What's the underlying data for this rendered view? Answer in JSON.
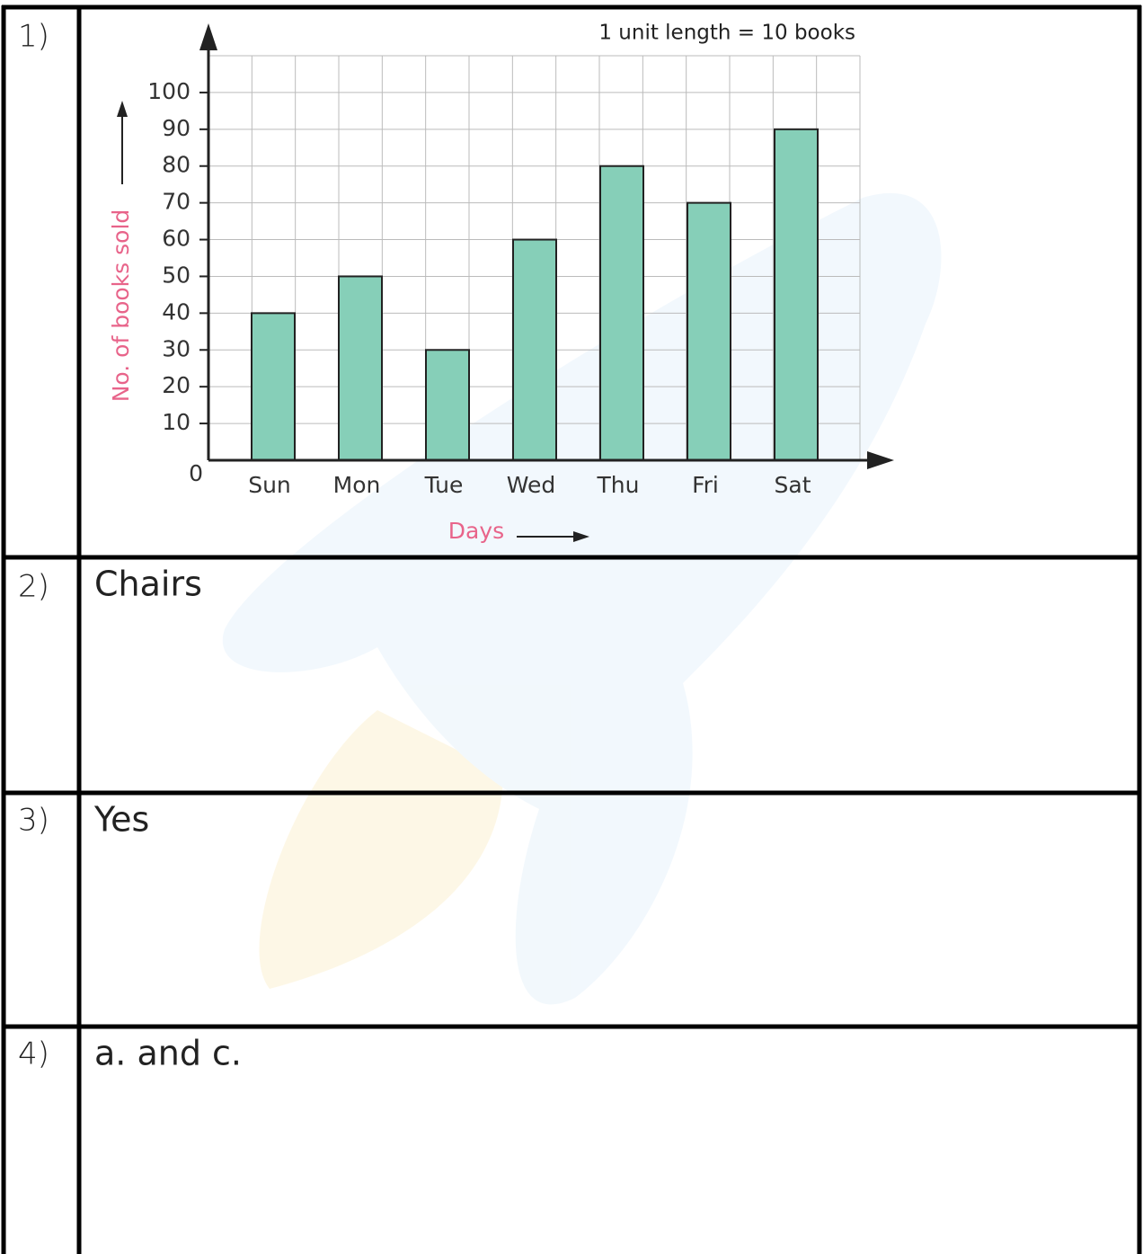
{
  "rows": [
    {
      "number": "1)"
    },
    {
      "number": "2)",
      "answer": "Chairs"
    },
    {
      "number": "3)",
      "answer": "Yes"
    },
    {
      "number": "4)",
      "answer": "a. and c."
    }
  ],
  "chart_data": {
    "type": "bar",
    "annotation": "1 unit length = 10 books",
    "y_label": "No. of books sold",
    "x_label": "Days",
    "categories": [
      "Sun",
      "Mon",
      "Tue",
      "Wed",
      "Thu",
      "Fri",
      "Sat"
    ],
    "values": [
      40,
      50,
      30,
      60,
      80,
      70,
      90
    ],
    "color": "#86cfb8",
    "ylim": [
      0,
      110
    ],
    "yticks": [
      0,
      10,
      20,
      30,
      40,
      50,
      60,
      70,
      80,
      90,
      100
    ],
    "grid": true
  }
}
